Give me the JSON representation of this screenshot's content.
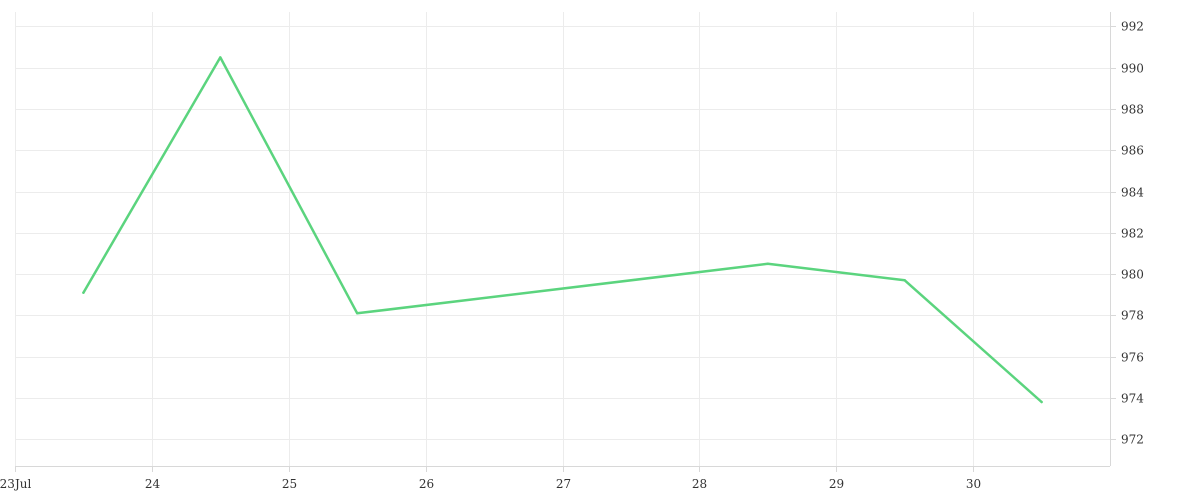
{
  "chart_data": {
    "type": "line",
    "title": "",
    "xlabel": "",
    "ylabel": "",
    "x_tick_labels": [
      "23Jul",
      "24",
      "25",
      "26",
      "27",
      "28",
      "29",
      "30"
    ],
    "x_ticks": [
      "2023-07-23",
      "2023-07-24",
      "2023-07-25",
      "2023-07-26",
      "2023-07-27",
      "2023-07-28",
      "2023-07-29",
      "2023-07-30"
    ],
    "xlim": [
      "2023-07-23",
      "2023-07-31"
    ],
    "y_ticks": [
      972,
      974,
      976,
      978,
      980,
      982,
      984,
      986,
      988,
      990,
      992
    ],
    "ylim": [
      970.7,
      992.7
    ],
    "y_axis_position": "right",
    "grid": true,
    "series": [
      {
        "color": "#5bd47e",
        "points": [
          {
            "x": "2023-07-23T12:00",
            "y": 979.1
          },
          {
            "x": "2023-07-24T12:00",
            "y": 990.5
          },
          {
            "x": "2023-07-25T12:00",
            "y": 978.1
          },
          {
            "x": "2023-07-28T12:00",
            "y": 980.5
          },
          {
            "x": "2023-07-29T12:00",
            "y": 979.7
          },
          {
            "x": "2023-07-30T12:00",
            "y": 973.8
          }
        ]
      }
    ]
  }
}
